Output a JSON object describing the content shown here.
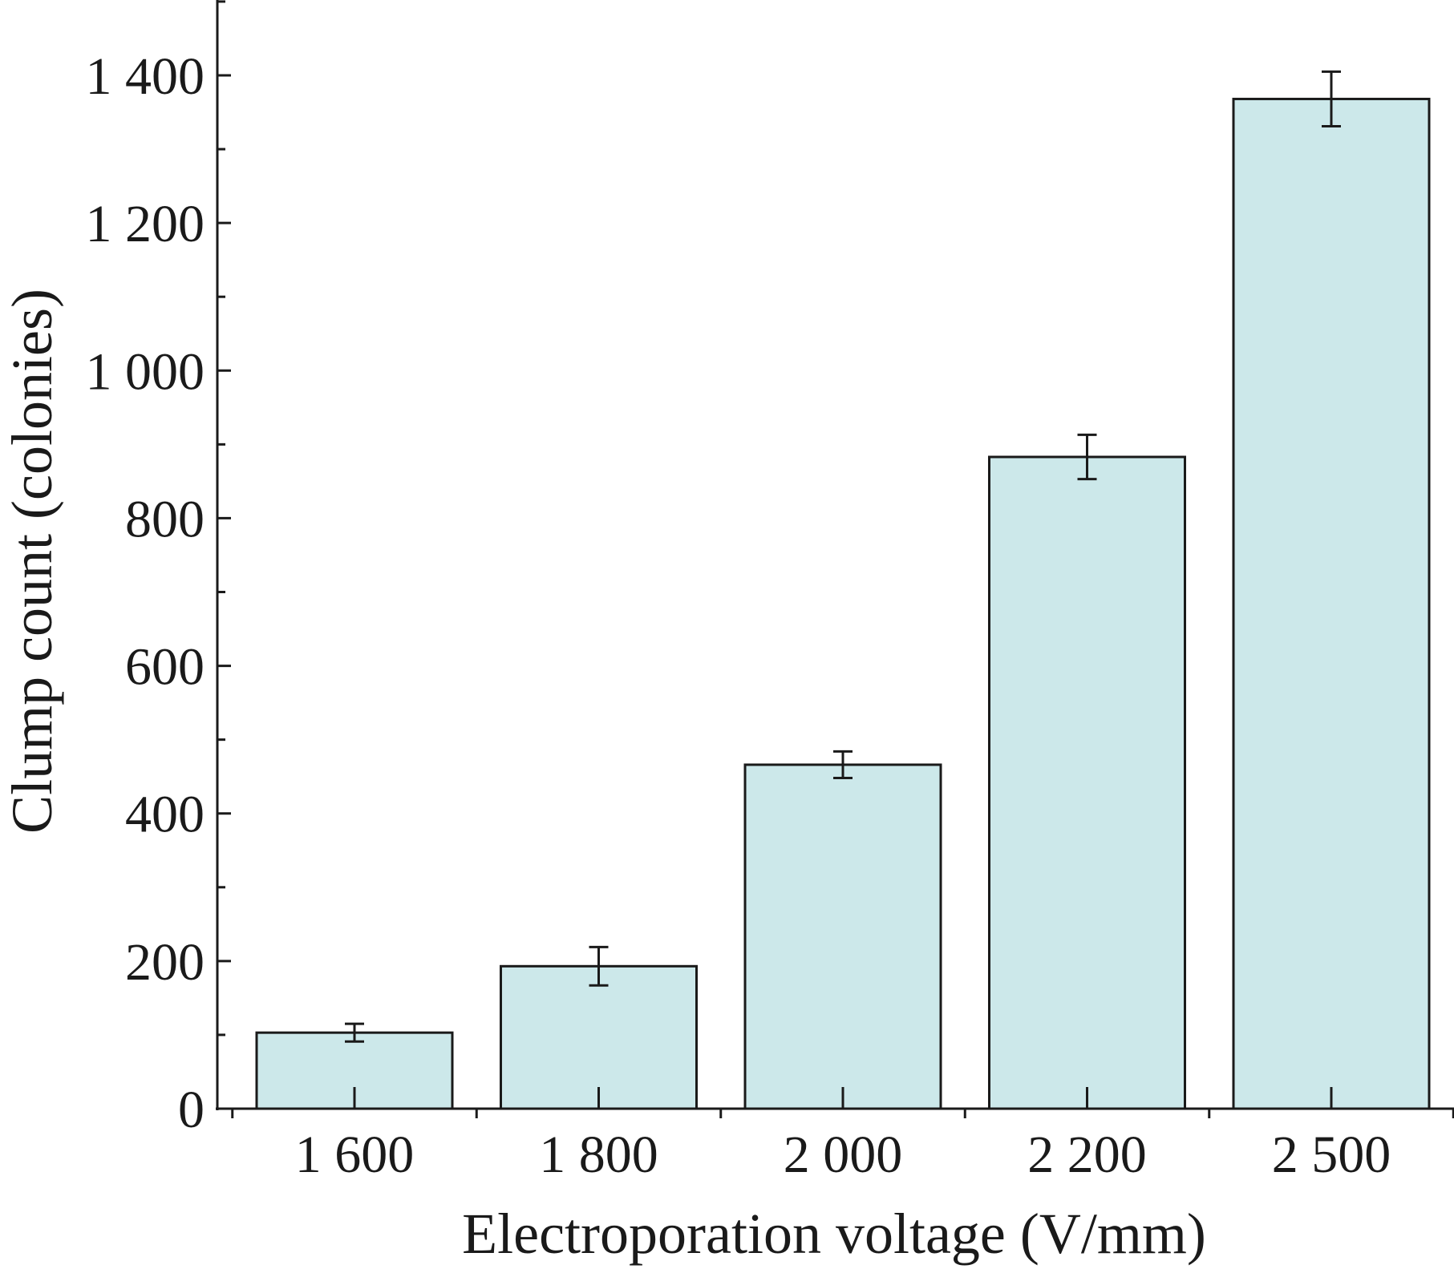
{
  "chart_data": {
    "type": "bar",
    "categories": [
      "1 600",
      "1 800",
      "2 000",
      "2 200",
      "2 500"
    ],
    "values": [
      103,
      193,
      466,
      883,
      1368
    ],
    "errors": [
      12,
      26,
      18,
      30,
      37
    ],
    "xlabel": "Electroporation voltage (V/mm)",
    "ylabel": "Clump count (colonies)",
    "ylim": [
      0,
      1500
    ],
    "yticks": [
      0,
      200,
      400,
      600,
      800,
      1000,
      1200,
      1400
    ],
    "ytick_labels": [
      "0",
      "200",
      "400",
      "600",
      "800",
      "1 000",
      "1 200",
      "1 400"
    ],
    "bar_color": "#cce8ea",
    "grid": false,
    "legend": "none"
  }
}
